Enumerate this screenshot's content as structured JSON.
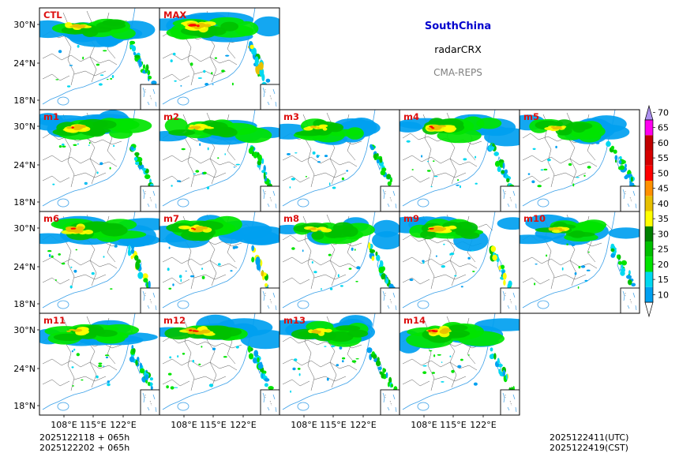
{
  "header": {
    "region": "SouthChina",
    "variable": "radarCRX",
    "model": "CMA-REPS"
  },
  "footer": {
    "init_utc": "2025122118  +  065h",
    "init_cst": "2025122202  +  065h",
    "valid_utc": "2025122411(UTC)",
    "valid_cst": "2025122419(CST)"
  },
  "axes": {
    "lat_labels": [
      "30°N",
      "24°N",
      "18°N"
    ],
    "lon_labels": [
      "108°E",
      "115°E",
      "122°E"
    ]
  },
  "panels": [
    {
      "label": "CTL",
      "intensity": 0.75,
      "south_band": 0.45
    },
    {
      "label": "MAX",
      "intensity": 1.0,
      "south_band": 1.0
    },
    {
      "label": "m1",
      "intensity": 0.8,
      "south_band": 0.45
    },
    {
      "label": "m2",
      "intensity": 0.65,
      "south_band": 0.55
    },
    {
      "label": "m3",
      "intensity": 0.55,
      "south_band": 0.45
    },
    {
      "label": "m4",
      "intensity": 0.8,
      "south_band": 0.5
    },
    {
      "label": "m5",
      "intensity": 0.6,
      "south_band": 0.35
    },
    {
      "label": "m6",
      "intensity": 0.85,
      "south_band": 0.75
    },
    {
      "label": "m7",
      "intensity": 0.8,
      "south_band": 0.8
    },
    {
      "label": "m8",
      "intensity": 0.6,
      "south_band": 0.55
    },
    {
      "label": "m9",
      "intensity": 0.8,
      "south_band": 0.7
    },
    {
      "label": "m10",
      "intensity": 0.6,
      "south_band": 0.3
    },
    {
      "label": "m11",
      "intensity": 0.7,
      "south_band": 0.4
    },
    {
      "label": "m12",
      "intensity": 0.85,
      "south_band": 0.5
    },
    {
      "label": "m13",
      "intensity": 0.7,
      "south_band": 0.45
    },
    {
      "label": "m14",
      "intensity": 0.9,
      "south_band": 0.6
    }
  ],
  "colorbar": {
    "levels": [
      "10",
      "15",
      "20",
      "25",
      "30",
      "35",
      "40",
      "45",
      "50",
      "55",
      "60",
      "65",
      "70"
    ],
    "colors": [
      "#00a0f0",
      "#00d8f0",
      "#00e400",
      "#00c000",
      "#008000",
      "#ffff00",
      "#e7c000",
      "#ff9000",
      "#ff0000",
      "#d60000",
      "#c00000",
      "#ff00f0",
      "#9600b4",
      "#ad90f0"
    ]
  }
}
